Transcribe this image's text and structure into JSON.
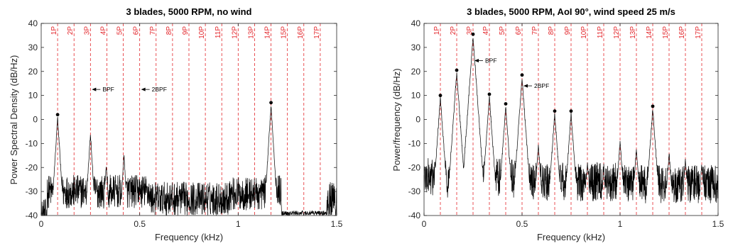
{
  "chart_data": [
    {
      "type": "line",
      "title": "3 blades, 5000 RPM, no wind",
      "xlabel": "Frequency (kHz)",
      "ylabel": "Power Spectral Density (dB/Hz)",
      "xlim": [
        0,
        1.5
      ],
      "ylim": [
        -40,
        40
      ],
      "xticks": [
        0,
        0.5,
        1,
        1.5
      ],
      "xtick_labels": [
        "0",
        "0.5",
        "1",
        "1.5"
      ],
      "yticks": [
        -40,
        -30,
        -20,
        -10,
        0,
        10,
        20,
        30,
        40
      ],
      "grid": false,
      "harmonic_lines": {
        "color": "#e3262b",
        "x": [
          0.0833,
          0.1667,
          0.25,
          0.3333,
          0.4167,
          0.5,
          0.5833,
          0.6667,
          0.75,
          0.8333,
          0.9167,
          1.0,
          1.0833,
          1.1667,
          1.25,
          1.3333,
          1.4167
        ],
        "labels": [
          "1P",
          "2P",
          "3P",
          "4P",
          "5P",
          "6P",
          "7P",
          "8P",
          "9P",
          "10P",
          "11P",
          "12P",
          "13P",
          "14P",
          "15P",
          "16P",
          "17P"
        ]
      },
      "markers": [
        {
          "x": 0.0833,
          "y": 2
        },
        {
          "x": 1.1667,
          "y": 7
        }
      ],
      "annotations": [
        {
          "text": "BPF",
          "x": 0.25,
          "y": 12.5
        },
        {
          "text": "2BPF",
          "x": 0.5,
          "y": 12.5
        }
      ],
      "peaks": [
        {
          "x": 0.0833,
          "y": 2
        },
        {
          "x": 0.25,
          "y": -5
        },
        {
          "x": 0.33,
          "y": -18
        },
        {
          "x": 0.42,
          "y": -14
        },
        {
          "x": 0.5,
          "y": -28
        },
        {
          "x": 1.09,
          "y": -28
        },
        {
          "x": 1.1667,
          "y": 7
        },
        {
          "x": 1.49,
          "y": -32
        }
      ],
      "series": [
        {
          "values_description_color": "#000000"
        }
      ]
    },
    {
      "type": "line",
      "title": "3 blades, 5000 RPM, AoI 90°, wind speed 25 m/s",
      "xlabel": "Frequency (kHz)",
      "ylabel": "Power/frequency (dB/Hz)",
      "xlim": [
        0,
        1.5
      ],
      "ylim": [
        -40,
        40
      ],
      "xticks": [
        0,
        0.5,
        1,
        1.5
      ],
      "xtick_labels": [
        "0",
        "0.5",
        "1",
        "1.5"
      ],
      "yticks": [
        -40,
        -30,
        -20,
        -10,
        0,
        10,
        20,
        30,
        40
      ],
      "grid": false,
      "harmonic_lines": {
        "color": "#e3262b",
        "x": [
          0.0833,
          0.1667,
          0.25,
          0.3333,
          0.4167,
          0.5,
          0.5833,
          0.6667,
          0.75,
          0.8333,
          0.9167,
          1.0,
          1.0833,
          1.1667,
          1.25,
          1.3333,
          1.4167
        ],
        "labels": [
          "1P",
          "2P",
          "3P",
          "4P",
          "5P",
          "6P",
          "7P",
          "8P",
          "9P",
          "10P",
          "11P",
          "12P",
          "13P",
          "14P",
          "15P",
          "16P",
          "17P"
        ]
      },
      "markers": [
        {
          "x": 0.0833,
          "y": 10
        },
        {
          "x": 0.1667,
          "y": 20.5
        },
        {
          "x": 0.25,
          "y": 35.5
        },
        {
          "x": 0.3333,
          "y": 10.5
        },
        {
          "x": 0.4167,
          "y": 6.5
        },
        {
          "x": 0.5,
          "y": 18.5
        },
        {
          "x": 0.6667,
          "y": 3.5
        },
        {
          "x": 0.75,
          "y": 3.5
        },
        {
          "x": 1.1667,
          "y": 5.5
        }
      ],
      "annotations": [
        {
          "text": "BPF",
          "x": 0.25,
          "y": 24.5
        },
        {
          "text": "2BPF",
          "x": 0.5,
          "y": 14
        }
      ],
      "peaks": [
        {
          "x": 0.0833,
          "y": 10
        },
        {
          "x": 0.1667,
          "y": 20.5
        },
        {
          "x": 0.25,
          "y": 35.5
        },
        {
          "x": 0.3333,
          "y": 10.5
        },
        {
          "x": 0.4167,
          "y": 6.5
        },
        {
          "x": 0.5,
          "y": 18.5
        },
        {
          "x": 0.5833,
          "y": -10
        },
        {
          "x": 0.6667,
          "y": 3.5
        },
        {
          "x": 0.75,
          "y": 3.5
        },
        {
          "x": 0.8333,
          "y": -17
        },
        {
          "x": 0.9167,
          "y": -20
        },
        {
          "x": 1.0,
          "y": -8
        },
        {
          "x": 1.0833,
          "y": -11
        },
        {
          "x": 1.1667,
          "y": 5.5
        },
        {
          "x": 1.25,
          "y": -13
        },
        {
          "x": 1.3333,
          "y": -16
        },
        {
          "x": 1.4167,
          "y": -18
        }
      ],
      "series": [
        {
          "values_description_color": "#000000"
        }
      ]
    }
  ]
}
